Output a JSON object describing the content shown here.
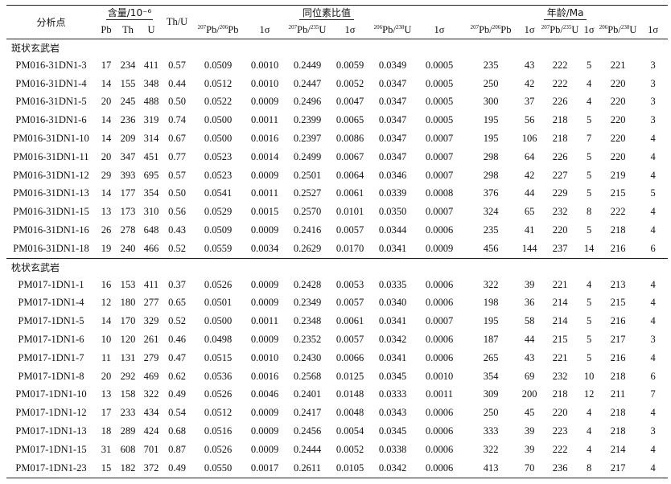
{
  "headers": {
    "analysis_point": "分析点",
    "content": "含量/10⁻⁶",
    "th_u": "Th/U",
    "isotope_ratio": "同位素比值",
    "age": "年龄/Ma",
    "sub": {
      "pb": "Pb",
      "th": "Th",
      "u": "U",
      "r1_mass": "207",
      "r1_el": "Pb/",
      "r1_mass2": "206",
      "r1_el2": "Pb",
      "sigma": "1σ",
      "r2_mass": "207",
      "r2_el": "Pb/",
      "r2_mass2": "235",
      "r2_el2": "U",
      "r3_mass": "206",
      "r3_el": "Pb/",
      "r3_mass2": "238",
      "r3_el2": "U"
    }
  },
  "groups": [
    {
      "title": "斑状玄武岩",
      "rows": [
        [
          "PM016-31DN1-3",
          "17",
          "234",
          "411",
          "0.57",
          "0.0509",
          "0.0010",
          "0.2449",
          "0.0059",
          "0.0349",
          "0.0005",
          "235",
          "43",
          "222",
          "5",
          "221",
          "3"
        ],
        [
          "PM016-31DN1-4",
          "14",
          "155",
          "348",
          "0.44",
          "0.0512",
          "0.0010",
          "0.2447",
          "0.0052",
          "0.0347",
          "0.0005",
          "250",
          "42",
          "222",
          "4",
          "220",
          "3"
        ],
        [
          "PM016-31DN1-5",
          "20",
          "245",
          "488",
          "0.50",
          "0.0522",
          "0.0009",
          "0.2496",
          "0.0047",
          "0.0347",
          "0.0005",
          "300",
          "37",
          "226",
          "4",
          "220",
          "3"
        ],
        [
          "PM016-31DN1-6",
          "14",
          "236",
          "319",
          "0.74",
          "0.0500",
          "0.0011",
          "0.2399",
          "0.0065",
          "0.0347",
          "0.0005",
          "195",
          "56",
          "218",
          "5",
          "220",
          "3"
        ],
        [
          "PM016-31DN1-10",
          "14",
          "209",
          "314",
          "0.67",
          "0.0500",
          "0.0016",
          "0.2397",
          "0.0086",
          "0.0347",
          "0.0007",
          "195",
          "106",
          "218",
          "7",
          "220",
          "4"
        ],
        [
          "PM016-31DN1-11",
          "20",
          "347",
          "451",
          "0.77",
          "0.0523",
          "0.0014",
          "0.2499",
          "0.0067",
          "0.0347",
          "0.0007",
          "298",
          "64",
          "226",
          "5",
          "220",
          "4"
        ],
        [
          "PM016-31DN1-12",
          "29",
          "393",
          "695",
          "0.57",
          "0.0523",
          "0.0009",
          "0.2501",
          "0.0064",
          "0.0346",
          "0.0007",
          "298",
          "42",
          "227",
          "5",
          "219",
          "4"
        ],
        [
          "PM016-31DN1-13",
          "14",
          "177",
          "354",
          "0.50",
          "0.0541",
          "0.0011",
          "0.2527",
          "0.0061",
          "0.0339",
          "0.0008",
          "376",
          "44",
          "229",
          "5",
          "215",
          "5"
        ],
        [
          "PM016-31DN1-15",
          "13",
          "173",
          "310",
          "0.56",
          "0.0529",
          "0.0015",
          "0.2570",
          "0.0101",
          "0.0350",
          "0.0007",
          "324",
          "65",
          "232",
          "8",
          "222",
          "4"
        ],
        [
          "PM016-31DN1-16",
          "26",
          "278",
          "648",
          "0.43",
          "0.0509",
          "0.0009",
          "0.2416",
          "0.0057",
          "0.0344",
          "0.0006",
          "235",
          "41",
          "220",
          "5",
          "218",
          "4"
        ],
        [
          "PM016-31DN1-18",
          "19",
          "240",
          "466",
          "0.52",
          "0.0559",
          "0.0034",
          "0.2629",
          "0.0170",
          "0.0341",
          "0.0009",
          "456",
          "144",
          "237",
          "14",
          "216",
          "6"
        ]
      ]
    },
    {
      "title": "枕状玄武岩",
      "rows": [
        [
          "PM017-1DN1-1",
          "16",
          "153",
          "411",
          "0.37",
          "0.0526",
          "0.0009",
          "0.2428",
          "0.0053",
          "0.0335",
          "0.0006",
          "322",
          "39",
          "221",
          "4",
          "213",
          "4"
        ],
        [
          "PM017-1DN1-4",
          "12",
          "180",
          "277",
          "0.65",
          "0.0501",
          "0.0009",
          "0.2349",
          "0.0057",
          "0.0340",
          "0.0006",
          "198",
          "36",
          "214",
          "5",
          "215",
          "4"
        ],
        [
          "PM017-1DN1-5",
          "14",
          "170",
          "329",
          "0.52",
          "0.0500",
          "0.0011",
          "0.2348",
          "0.0061",
          "0.0341",
          "0.0007",
          "195",
          "58",
          "214",
          "5",
          "216",
          "4"
        ],
        [
          "PM017-1DN1-6",
          "10",
          "120",
          "261",
          "0.46",
          "0.0498",
          "0.0009",
          "0.2352",
          "0.0057",
          "0.0342",
          "0.0006",
          "187",
          "44",
          "215",
          "5",
          "217",
          "3"
        ],
        [
          "PM017-1DN1-7",
          "11",
          "131",
          "279",
          "0.47",
          "0.0515",
          "0.0010",
          "0.2430",
          "0.0066",
          "0.0341",
          "0.0006",
          "265",
          "43",
          "221",
          "5",
          "216",
          "4"
        ],
        [
          "PM017-1DN1-8",
          "20",
          "292",
          "469",
          "0.62",
          "0.0536",
          "0.0016",
          "0.2568",
          "0.0125",
          "0.0345",
          "0.0010",
          "354",
          "69",
          "232",
          "10",
          "218",
          "6"
        ],
        [
          "PM017-1DN1-10",
          "13",
          "158",
          "322",
          "0.49",
          "0.0526",
          "0.0046",
          "0.2401",
          "0.0148",
          "0.0333",
          "0.0011",
          "309",
          "200",
          "218",
          "12",
          "211",
          "7"
        ],
        [
          "PM017-1DN1-12",
          "17",
          "233",
          "434",
          "0.54",
          "0.0512",
          "0.0009",
          "0.2417",
          "0.0048",
          "0.0343",
          "0.0006",
          "250",
          "45",
          "220",
          "4",
          "218",
          "4"
        ],
        [
          "PM017-1DN1-13",
          "18",
          "289",
          "424",
          "0.68",
          "0.0516",
          "0.0009",
          "0.2456",
          "0.0054",
          "0.0345",
          "0.0006",
          "333",
          "39",
          "223",
          "4",
          "218",
          "3"
        ],
        [
          "PM017-1DN1-15",
          "31",
          "608",
          "701",
          "0.87",
          "0.0526",
          "0.0009",
          "0.2444",
          "0.0052",
          "0.0338",
          "0.0006",
          "322",
          "39",
          "222",
          "4",
          "214",
          "4"
        ],
        [
          "PM017-1DN1-23",
          "15",
          "182",
          "372",
          "0.49",
          "0.0550",
          "0.0017",
          "0.2611",
          "0.0105",
          "0.0342",
          "0.0006",
          "413",
          "70",
          "236",
          "8",
          "217",
          "4"
        ]
      ]
    }
  ]
}
